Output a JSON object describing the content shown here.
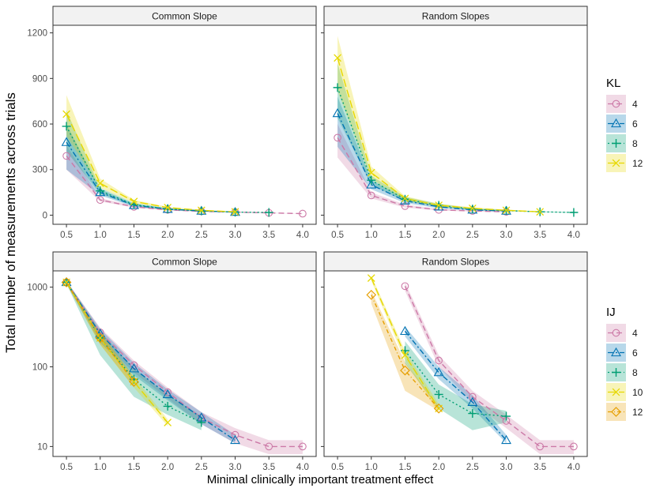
{
  "figure": {
    "ylabel": "Total number of measurements across trials",
    "xlabel": "Minimal clinically important treatment effect"
  },
  "colors": {
    "4": "#CC79A7",
    "6": "#0072B2",
    "8": "#009E73",
    "10": "#E6D800",
    "12": "#E69F00",
    "12_kl": "#E6D800"
  },
  "chart_data": [
    {
      "type": "line",
      "panel": "Common Slope",
      "legend_group": "KL",
      "yscale": "linear",
      "ylim": [
        0,
        1250
      ],
      "yticks": [
        0,
        300,
        600,
        900,
        1200
      ],
      "ytick_labels": [
        "0",
        "300",
        "600",
        "900",
        "1200"
      ],
      "xlim": [
        0.5,
        4.0
      ],
      "xticks": [
        0.5,
        1.0,
        1.5,
        2.0,
        2.5,
        3.0,
        3.5,
        4.0
      ],
      "xtick_labels": [
        "0.5",
        "1.0",
        "1.5",
        "2.0",
        "2.5",
        "3.0",
        "3.5",
        "4.0"
      ],
      "series": [
        {
          "name": "4",
          "x": [
            0.5,
            1.0,
            1.5,
            2.0,
            2.5,
            3.0,
            3.5,
            4.0
          ],
          "values": [
            390,
            100,
            55,
            35,
            25,
            20,
            15,
            10
          ],
          "lower": [
            300,
            90,
            50,
            30,
            22,
            18,
            13,
            9
          ],
          "upper": [
            460,
            112,
            62,
            40,
            28,
            22,
            17,
            11
          ]
        },
        {
          "name": "6",
          "x": [
            0.5,
            1.0,
            1.5,
            2.0,
            2.5,
            3.0
          ],
          "values": [
            480,
            150,
            65,
            40,
            28,
            20
          ],
          "lower": [
            300,
            130,
            55,
            35,
            24,
            18
          ],
          "upper": [
            600,
            170,
            75,
            45,
            32,
            22
          ]
        },
        {
          "name": "8",
          "x": [
            0.5,
            1.0,
            1.5,
            2.0,
            2.5,
            3.0,
            3.5
          ],
          "values": [
            585,
            160,
            70,
            40,
            28,
            20,
            18
          ],
          "lower": [
            420,
            140,
            60,
            35,
            25,
            18,
            16
          ],
          "upper": [
            690,
            180,
            80,
            45,
            31,
            22,
            20
          ]
        },
        {
          "name": "12",
          "x": [
            0.5,
            1.0,
            1.5,
            2.0,
            2.5,
            3.0
          ],
          "values": [
            665,
            210,
            90,
            50,
            32,
            22
          ],
          "lower": [
            520,
            180,
            80,
            45,
            29,
            20
          ],
          "upper": [
            790,
            240,
            100,
            55,
            35,
            24
          ]
        }
      ]
    },
    {
      "type": "line",
      "panel": "Random Slopes",
      "legend_group": "KL",
      "yscale": "linear",
      "ylim": [
        0,
        1250
      ],
      "yticks": [
        0,
        300,
        600,
        900,
        1200
      ],
      "ytick_labels": [
        "0",
        "300",
        "600",
        "900",
        "1200"
      ],
      "xlim": [
        0.5,
        4.0
      ],
      "xticks": [
        0.5,
        1.0,
        1.5,
        2.0,
        2.5,
        3.0,
        3.5,
        4.0
      ],
      "xtick_labels": [
        "0.5",
        "1.0",
        "1.5",
        "2.0",
        "2.5",
        "3.0",
        "3.5",
        "4.0"
      ],
      "series": [
        {
          "name": "4",
          "x": [
            0.5,
            1.0,
            1.5,
            2.0,
            2.5,
            3.0
          ],
          "values": [
            510,
            130,
            60,
            35,
            28,
            22
          ],
          "lower": [
            380,
            110,
            50,
            30,
            24,
            19
          ],
          "upper": [
            600,
            150,
            70,
            42,
            32,
            25
          ]
        },
        {
          "name": "6",
          "x": [
            0.5,
            1.0,
            1.5,
            2.0,
            2.5,
            3.0
          ],
          "values": [
            670,
            200,
            95,
            55,
            35,
            28
          ],
          "lower": [
            450,
            170,
            80,
            45,
            30,
            24
          ],
          "upper": [
            780,
            230,
            110,
            65,
            40,
            32
          ]
        },
        {
          "name": "8",
          "x": [
            0.5,
            1.0,
            1.5,
            2.0,
            2.5,
            3.0,
            3.5,
            4.0
          ],
          "values": [
            840,
            230,
            105,
            65,
            40,
            30,
            22,
            18
          ],
          "lower": [
            640,
            200,
            90,
            55,
            35,
            26,
            19,
            15
          ],
          "upper": [
            1000,
            260,
            120,
            75,
            45,
            34,
            25,
            21
          ]
        },
        {
          "name": "12",
          "x": [
            0.5,
            1.0,
            1.5,
            2.0,
            2.5,
            3.0,
            3.5
          ],
          "values": [
            1035,
            280,
            110,
            65,
            45,
            32,
            22
          ],
          "lower": [
            820,
            240,
            95,
            55,
            38,
            28,
            19
          ],
          "upper": [
            1180,
            320,
            125,
            75,
            52,
            36,
            25
          ]
        }
      ]
    },
    {
      "type": "line",
      "panel": "Common Slope",
      "legend_group": "IJ",
      "yscale": "log",
      "ylim": [
        7.5,
        1600
      ],
      "yticks": [
        10,
        100,
        1000
      ],
      "ytick_labels": [
        "10",
        "100",
        "1000"
      ],
      "xlim": [
        0.5,
        4.0
      ],
      "xticks": [
        0.5,
        1.0,
        1.5,
        2.0,
        2.5,
        3.0,
        3.5,
        4.0
      ],
      "xtick_labels": [
        "0.5",
        "1.0",
        "1.5",
        "2.0",
        "2.5",
        "3.0",
        "3.5",
        "4.0"
      ],
      "series": [
        {
          "name": "4",
          "x": [
            0.5,
            1.0,
            1.5,
            2.0,
            2.5,
            3.0,
            3.5,
            4.0
          ],
          "values": [
            1150,
            270,
            105,
            48,
            23,
            14,
            10,
            10
          ],
          "lower": [
            1100,
            220,
            85,
            40,
            19,
            11,
            8,
            8
          ],
          "upper": [
            1200,
            310,
            120,
            55,
            27,
            17,
            12,
            12
          ]
        },
        {
          "name": "6",
          "x": [
            0.5,
            1.0,
            1.5,
            2.0,
            2.5,
            3.0
          ],
          "values": [
            1150,
            260,
            95,
            45,
            23,
            12
          ],
          "lower": [
            1100,
            200,
            78,
            38,
            19,
            11
          ],
          "upper": [
            1200,
            300,
            112,
            52,
            27,
            14
          ]
        },
        {
          "name": "8",
          "x": [
            0.5,
            1.0,
            1.5,
            2.0,
            2.5
          ],
          "values": [
            1150,
            230,
            70,
            32,
            20
          ],
          "lower": [
            1100,
            140,
            42,
            25,
            16
          ],
          "upper": [
            1200,
            280,
            95,
            45,
            24
          ]
        },
        {
          "name": "10",
          "x": [
            0.5,
            1.0,
            1.5,
            2.0
          ],
          "values": [
            1150,
            230,
            65,
            20
          ],
          "lower": [
            1100,
            190,
            55,
            18
          ],
          "upper": [
            1200,
            270,
            75,
            22
          ]
        },
        {
          "name": "12",
          "x": [
            0.5,
            1.0,
            1.5
          ],
          "values": [
            1150,
            230,
            65
          ],
          "lower": [
            1100,
            190,
            55
          ],
          "upper": [
            1200,
            270,
            75
          ]
        }
      ]
    },
    {
      "type": "line",
      "panel": "Random Slopes",
      "legend_group": "IJ",
      "yscale": "log",
      "ylim": [
        7.5,
        1600
      ],
      "yticks": [
        10,
        100,
        1000
      ],
      "ytick_labels": [
        "10",
        "100",
        "1000"
      ],
      "xlim": [
        0.5,
        4.0
      ],
      "xticks": [
        0.5,
        1.0,
        1.5,
        2.0,
        2.5,
        3.0,
        3.5,
        4.0
      ],
      "xtick_labels": [
        "0.5",
        "1.0",
        "1.5",
        "2.0",
        "2.5",
        "3.0",
        "3.5",
        "4.0"
      ],
      "series": [
        {
          "name": "4",
          "x": [
            1.5,
            2.0,
            2.5,
            3.0,
            3.5,
            4.0
          ],
          "values": [
            1030,
            120,
            42,
            21,
            10,
            10
          ],
          "lower": [
            900,
            100,
            35,
            17,
            8,
            8
          ],
          "upper": [
            1150,
            140,
            50,
            25,
            12,
            12
          ]
        },
        {
          "name": "6",
          "x": [
            1.5,
            2.0,
            2.5,
            3.0
          ],
          "values": [
            280,
            85,
            36,
            12
          ],
          "lower": [
            240,
            70,
            30,
            11
          ],
          "upper": [
            320,
            100,
            44,
            14
          ]
        },
        {
          "name": "8",
          "x": [
            1.5,
            2.0,
            2.5,
            3.0
          ],
          "values": [
            160,
            45,
            26,
            24
          ],
          "lower": [
            110,
            30,
            16,
            20
          ],
          "upper": [
            210,
            60,
            34,
            28
          ]
        },
        {
          "name": "10",
          "x": [
            1.0,
            1.5,
            2.0
          ],
          "values": [
            1300,
            140,
            30
          ],
          "lower": [
            1200,
            120,
            26
          ],
          "upper": [
            1400,
            160,
            34
          ]
        },
        {
          "name": "12",
          "x": [
            1.0,
            1.5,
            2.0
          ],
          "values": [
            800,
            90,
            30
          ],
          "lower": [
            620,
            50,
            28
          ],
          "upper": [
            900,
            115,
            32
          ]
        }
      ]
    }
  ],
  "legends": [
    {
      "title": "KL",
      "entries": [
        "4",
        "6",
        "8",
        "12"
      ]
    },
    {
      "title": "IJ",
      "entries": [
        "4",
        "6",
        "8",
        "10",
        "12"
      ]
    }
  ]
}
